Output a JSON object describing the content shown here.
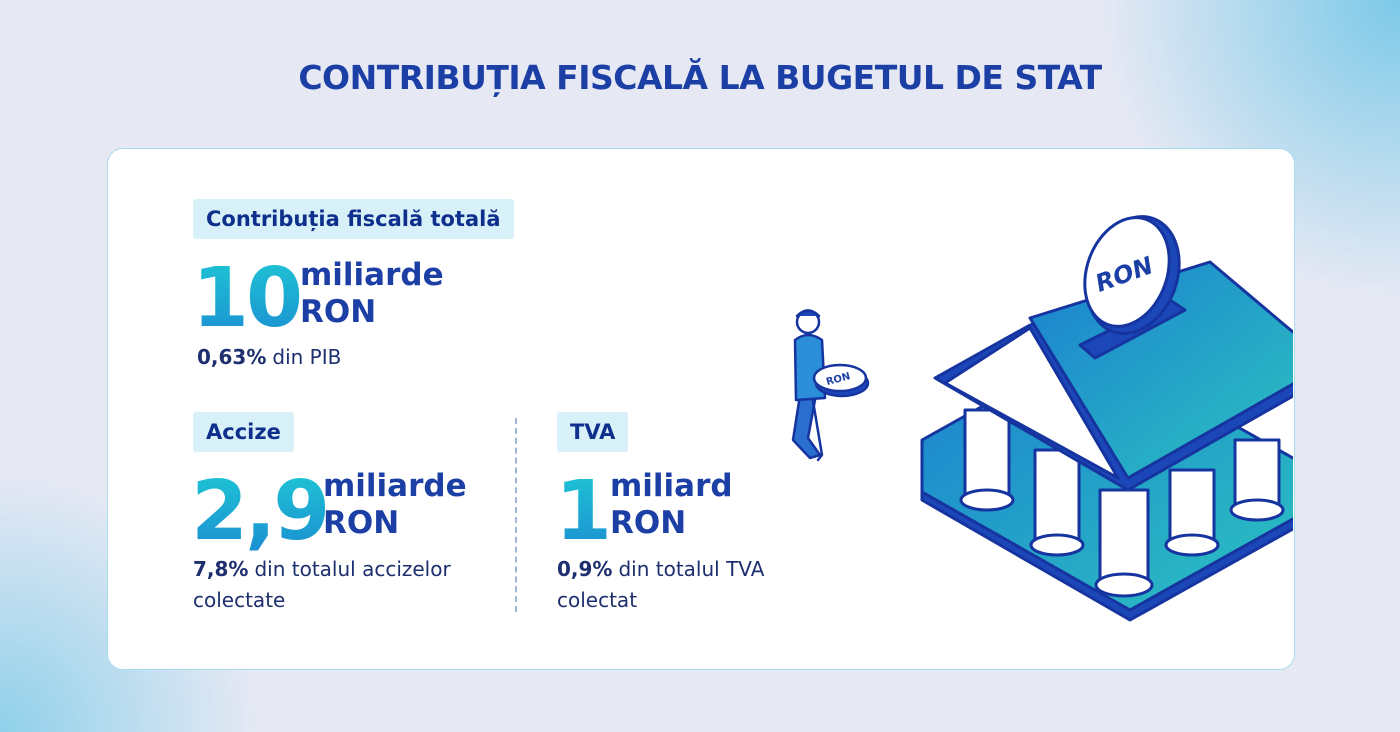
{
  "title": "CONTRIBUȚIA FISCALĂ LA BUGETUL DE STAT",
  "total": {
    "label": "Contribuția fiscală totală",
    "value": "10",
    "unit_line1": "miliarde",
    "unit_line2": "RON",
    "note_strong": "0,63%",
    "note_rest": "din PIB"
  },
  "accize": {
    "label": "Accize",
    "value": "2,9",
    "unit_line1": "miliarde",
    "unit_line2": "RON",
    "note_strong": "7,8%",
    "note_rest": "din totalul accizelor colectate"
  },
  "tva": {
    "label": "TVA",
    "value": "1",
    "unit_line1": "miliard",
    "unit_line2": "RON",
    "note_strong": "0,9%",
    "note_rest": "din totalul TVA colectat"
  },
  "illustration": {
    "bank_coin": "RON",
    "carried_coin": "RON"
  }
}
